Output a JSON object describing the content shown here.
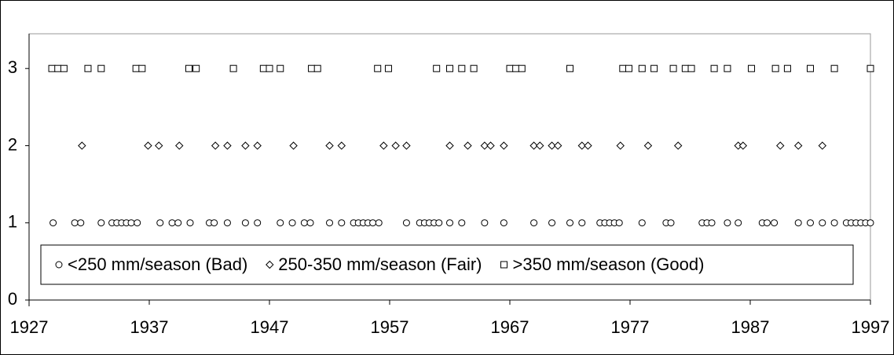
{
  "chart_data": {
    "type": "scatter",
    "series": [
      {
        "name": "<250 mm/season (Bad)",
        "marker": "circle",
        "color": "#000000",
        "x": [
          1929.0,
          1930.8,
          1931.3,
          1933.0,
          1933.9,
          1934.3,
          1934.7,
          1935.1,
          1935.5,
          1936.0,
          1937.9,
          1938.9,
          1939.4,
          1940.4,
          1942.0,
          1942.4,
          1943.5,
          1945.0,
          1946.0,
          1947.9,
          1948.9,
          1949.9,
          1950.4,
          1952.0,
          1953.0,
          1954.0,
          1954.4,
          1954.8,
          1955.2,
          1955.6,
          1956.1,
          1958.4,
          1959.5,
          1959.9,
          1960.3,
          1960.7,
          1961.1,
          1962.0,
          1963.0,
          1964.9,
          1966.5,
          1969.0,
          1970.5,
          1972.0,
          1973.0,
          1974.5,
          1974.9,
          1975.3,
          1975.7,
          1976.1,
          1978.0,
          1980.0,
          1980.4,
          1983.0,
          1983.4,
          1983.8,
          1985.1,
          1986.0,
          1988.0,
          1988.4,
          1989.0,
          1991.0,
          1992.0,
          1993.0,
          1994.0,
          1995.0,
          1995.4,
          1995.8,
          1996.2,
          1996.6,
          1997.0
        ],
        "values": [
          1,
          1,
          1,
          1,
          1,
          1,
          1,
          1,
          1,
          1,
          1,
          1,
          1,
          1,
          1,
          1,
          1,
          1,
          1,
          1,
          1,
          1,
          1,
          1,
          1,
          1,
          1,
          1,
          1,
          1,
          1,
          1,
          1,
          1,
          1,
          1,
          1,
          1,
          1,
          1,
          1,
          1,
          1,
          1,
          1,
          1,
          1,
          1,
          1,
          1,
          1,
          1,
          1,
          1,
          1,
          1,
          1,
          1,
          1,
          1,
          1,
          1,
          1,
          1,
          1,
          1,
          1,
          1,
          1,
          1,
          1
        ]
      },
      {
        "name": "250-350 mm/season (Fair)",
        "marker": "diamond",
        "color": "#000000",
        "x": [
          1931.4,
          1936.9,
          1937.8,
          1939.5,
          1942.5,
          1943.5,
          1945.0,
          1946.0,
          1949.0,
          1952.0,
          1953.0,
          1956.5,
          1957.5,
          1958.4,
          1962.0,
          1963.5,
          1964.9,
          1965.4,
          1966.5,
          1969.0,
          1969.5,
          1970.5,
          1971.0,
          1973.0,
          1973.5,
          1976.2,
          1978.5,
          1981.0,
          1986.0,
          1986.4,
          1989.5,
          1991.0,
          1993.0
        ],
        "values": [
          2,
          2,
          2,
          2,
          2,
          2,
          2,
          2,
          2,
          2,
          2,
          2,
          2,
          2,
          2,
          2,
          2,
          2,
          2,
          2,
          2,
          2,
          2,
          2,
          2,
          2,
          2,
          2,
          2,
          2,
          2,
          2,
          2
        ]
      },
      {
        "name": ">350 mm/season (Good)",
        "marker": "square",
        "color": "#000000",
        "x": [
          1928.9,
          1929.4,
          1929.9,
          1931.9,
          1933.0,
          1935.9,
          1936.4,
          1940.3,
          1940.9,
          1944.0,
          1946.5,
          1947.0,
          1947.9,
          1950.5,
          1951.0,
          1956.0,
          1956.9,
          1960.9,
          1962.0,
          1963.0,
          1964.0,
          1967.0,
          1967.5,
          1968.0,
          1972.0,
          1976.4,
          1976.9,
          1978.0,
          1979.0,
          1980.6,
          1981.6,
          1982.1,
          1984.0,
          1985.1,
          1987.1,
          1989.1,
          1990.1,
          1992.0,
          1994.0,
          1997.0
        ],
        "values": [
          3,
          3,
          3,
          3,
          3,
          3,
          3,
          3,
          3,
          3,
          3,
          3,
          3,
          3,
          3,
          3,
          3,
          3,
          3,
          3,
          3,
          3,
          3,
          3,
          3,
          3,
          3,
          3,
          3,
          3,
          3,
          3,
          3,
          3,
          3,
          3,
          3,
          3,
          3,
          3
        ]
      }
    ],
    "xlim": [
      1927,
      1997
    ],
    "xticks": [
      1927,
      1937,
      1947,
      1957,
      1967,
      1977,
      1987,
      1997
    ],
    "ylim": [
      0,
      3.45
    ],
    "yticks": [
      0,
      1,
      2,
      3
    ],
    "legend": "bottom"
  }
}
